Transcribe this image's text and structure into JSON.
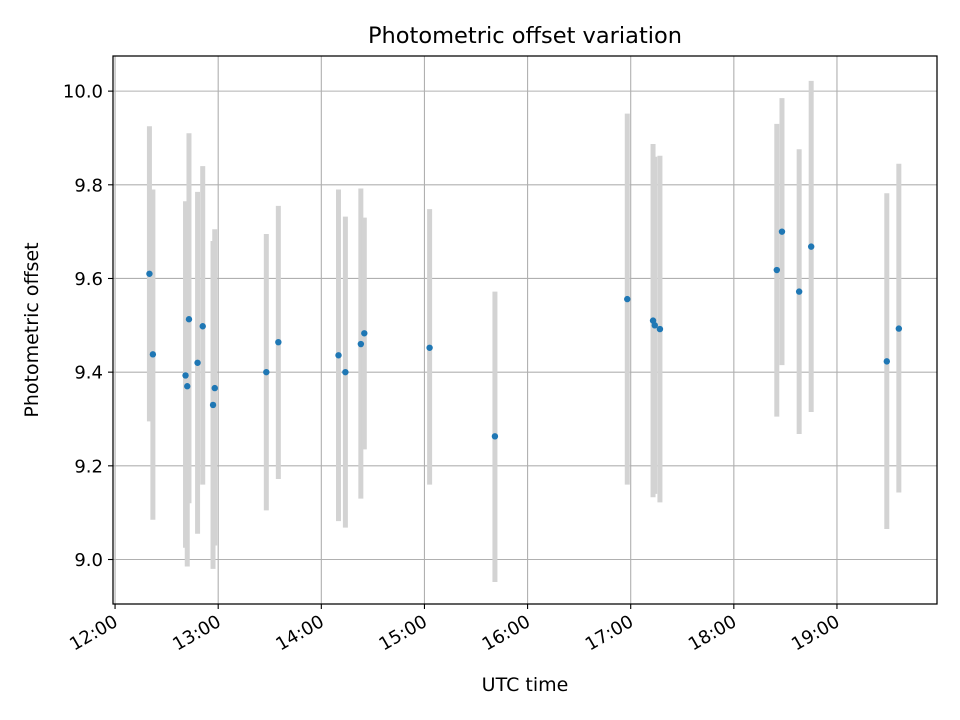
{
  "chart_data": {
    "type": "scatter",
    "title": "Photometric offset variation",
    "xlabel": "UTC time",
    "ylabel": "Photometric offset",
    "xlim": [
      11.98,
      19.97
    ],
    "ylim": [
      8.905,
      10.075
    ],
    "grid": true,
    "x_ticks": [
      {
        "value": 12,
        "label": "12:00"
      },
      {
        "value": 13,
        "label": "13:00"
      },
      {
        "value": 14,
        "label": "14:00"
      },
      {
        "value": 15,
        "label": "15:00"
      },
      {
        "value": 16,
        "label": "16:00"
      },
      {
        "value": 17,
        "label": "17:00"
      },
      {
        "value": 18,
        "label": "18:00"
      },
      {
        "value": 19,
        "label": "19:00"
      }
    ],
    "y_ticks": [
      {
        "value": 9.0,
        "label": "9.0"
      },
      {
        "value": 9.2,
        "label": "9.2"
      },
      {
        "value": 9.4,
        "label": "9.4"
      },
      {
        "value": 9.6,
        "label": "9.6"
      },
      {
        "value": 9.8,
        "label": "9.8"
      },
      {
        "value": 10.0,
        "label": "10.0"
      }
    ],
    "point_color": "#1f77b4",
    "errorbar_color": "#d3d3d3",
    "grid_color": "#b0b0b0",
    "points": [
      {
        "x": "12:20",
        "y": 9.61,
        "low": 9.295,
        "high": 9.925
      },
      {
        "x": "12:22",
        "y": 9.438,
        "low": 9.085,
        "high": 9.79
      },
      {
        "x": "12:41",
        "y": 9.393,
        "low": 9.025,
        "high": 9.765
      },
      {
        "x": "12:42",
        "y": 9.37,
        "low": 8.985,
        "high": 9.75
      },
      {
        "x": "12:43",
        "y": 9.513,
        "low": 9.12,
        "high": 9.91
      },
      {
        "x": "12:48",
        "y": 9.42,
        "low": 9.055,
        "high": 9.785
      },
      {
        "x": "12:51",
        "y": 9.498,
        "low": 9.16,
        "high": 9.84
      },
      {
        "x": "12:57",
        "y": 9.33,
        "low": 8.98,
        "high": 9.68
      },
      {
        "x": "12:58",
        "y": 9.366,
        "low": 9.03,
        "high": 9.705
      },
      {
        "x": "13:28",
        "y": 9.4,
        "low": 9.105,
        "high": 9.695
      },
      {
        "x": "13:35",
        "y": 9.464,
        "low": 9.172,
        "high": 9.755
      },
      {
        "x": "14:10",
        "y": 9.436,
        "low": 9.082,
        "high": 9.79
      },
      {
        "x": "14:14",
        "y": 9.4,
        "low": 9.068,
        "high": 9.732
      },
      {
        "x": "14:23",
        "y": 9.46,
        "low": 9.13,
        "high": 9.792
      },
      {
        "x": "14:25",
        "y": 9.483,
        "low": 9.235,
        "high": 9.73
      },
      {
        "x": "15:03",
        "y": 9.452,
        "low": 9.16,
        "high": 9.748
      },
      {
        "x": "15:41",
        "y": 9.263,
        "low": 8.952,
        "high": 9.572
      },
      {
        "x": "16:58",
        "y": 9.556,
        "low": 9.16,
        "high": 9.952
      },
      {
        "x": "17:13",
        "y": 9.51,
        "low": 9.133,
        "high": 9.887
      },
      {
        "x": "17:14",
        "y": 9.5,
        "low": 9.14,
        "high": 9.86
      },
      {
        "x": "17:17",
        "y": 9.492,
        "low": 9.122,
        "high": 9.862
      },
      {
        "x": "18:25",
        "y": 9.618,
        "low": 9.305,
        "high": 9.93
      },
      {
        "x": "18:28",
        "y": 9.7,
        "low": 9.415,
        "high": 9.985
      },
      {
        "x": "18:38",
        "y": 9.572,
        "low": 9.268,
        "high": 9.876
      },
      {
        "x": "18:45",
        "y": 9.668,
        "low": 9.315,
        "high": 10.022
      },
      {
        "x": "19:29",
        "y": 9.423,
        "low": 9.065,
        "high": 9.782
      },
      {
        "x": "19:36",
        "y": 9.493,
        "low": 9.143,
        "high": 9.845
      }
    ]
  }
}
